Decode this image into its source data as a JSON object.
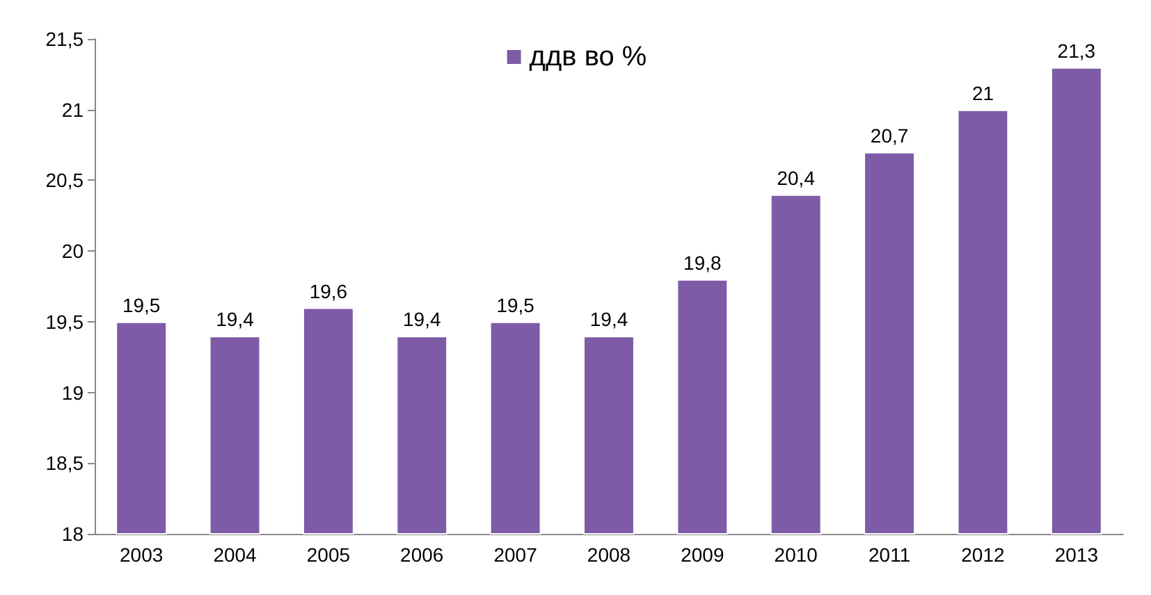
{
  "chart_data": {
    "type": "bar",
    "categories": [
      "2003",
      "2004",
      "2005",
      "2006",
      "2007",
      "2008",
      "2009",
      "2010",
      "2011",
      "2012",
      "2013"
    ],
    "series": [
      {
        "name": "ддв во %",
        "color": "#7d5ba6",
        "values": [
          19.5,
          19.4,
          19.6,
          19.4,
          19.5,
          19.4,
          19.8,
          20.4,
          20.7,
          21,
          21.3
        ],
        "value_labels": [
          "19,5",
          "19,4",
          "19,6",
          "19,4",
          "19,5",
          "19,4",
          "19,8",
          "20,4",
          "20,7",
          "21",
          "21,3"
        ]
      }
    ],
    "ylim": [
      18,
      21.5
    ],
    "yticks": [
      18,
      {
        "value": 18.5,
        "label": "18,5"
      },
      19,
      {
        "value": 19.5,
        "label": "19,5"
      },
      20,
      {
        "value": 20.5,
        "label": "20,5"
      },
      21,
      {
        "value": 21.5,
        "label": "21,5"
      }
    ],
    "grid": false,
    "legend": "top"
  }
}
